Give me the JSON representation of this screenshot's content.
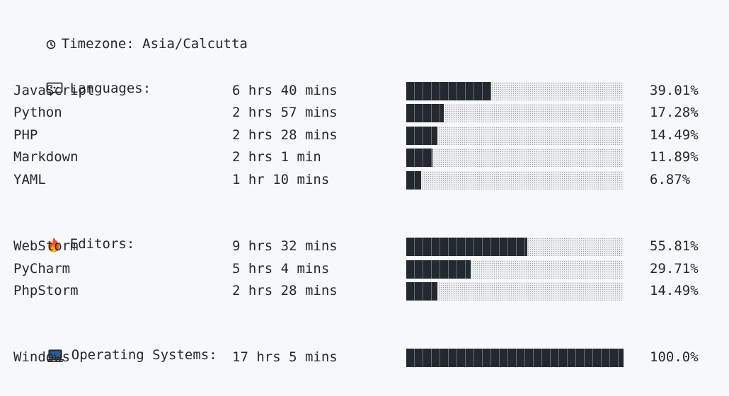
{
  "timezone": {
    "icon": "clock-icon",
    "label": "Timezone: Asia/Calcutta"
  },
  "languages": {
    "icon": "speech-balloon-icon",
    "title": "Languages:",
    "items": [
      {
        "name": "JavaScript",
        "time": "6 hrs 40 mins",
        "percent": "39.01%",
        "value": 39.01
      },
      {
        "name": "Python",
        "time": "2 hrs 57 mins",
        "percent": "17.28%",
        "value": 17.28
      },
      {
        "name": "PHP",
        "time": "2 hrs 28 mins",
        "percent": "14.49%",
        "value": 14.49
      },
      {
        "name": "Markdown",
        "time": "2 hrs 1 min",
        "percent": "11.89%",
        "value": 11.89
      },
      {
        "name": "YAML",
        "time": "1 hr 10 mins",
        "percent": "6.87%",
        "value": 6.87
      }
    ]
  },
  "editors": {
    "icon": "fire-icon",
    "title": "Editors:",
    "items": [
      {
        "name": "WebStorm",
        "time": "9 hrs 32 mins",
        "percent": "55.81%",
        "value": 55.81
      },
      {
        "name": "PyCharm",
        "time": "5 hrs 4 mins",
        "percent": "29.71%",
        "value": 29.71
      },
      {
        "name": "PhpStorm",
        "time": "2 hrs 28 mins",
        "percent": "14.49%",
        "value": 14.49
      }
    ]
  },
  "operating_systems": {
    "icon": "laptop-icon",
    "title": "Operating Systems:",
    "items": [
      {
        "name": "Windows",
        "time": "17 hrs 5 mins",
        "percent": "100.0%",
        "value": 100.0
      }
    ]
  },
  "colors": {
    "background": "#f6f8fa",
    "text": "#24292f",
    "bar_fill": "#24292f",
    "bar_empty": "#eceef0"
  }
}
